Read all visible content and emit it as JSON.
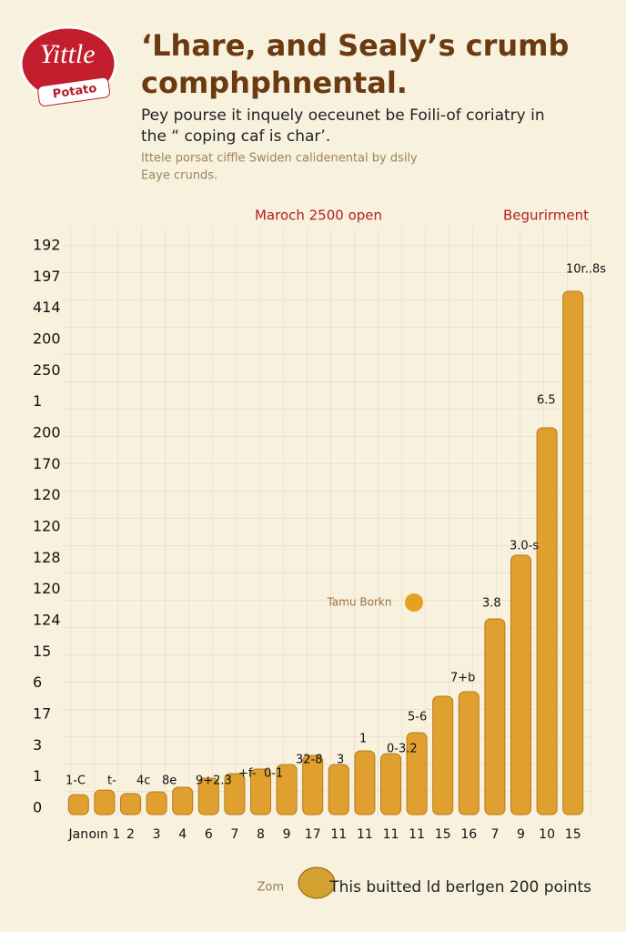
{
  "chart_data": {
    "type": "bar",
    "logo": {
      "top": "Yittle",
      "bottom": "Potato"
    },
    "title": [
      "‘Lhare, and Sealy’s crumb",
      "comphphnental."
    ],
    "subtitle": [
      "Pey pourse it inquely oeceunet be Foili-of coriatry in",
      "the “ coping caf is char’."
    ],
    "caption": [
      "Ittele porsat ciffle Swiden calidenental by dsily",
      "Eaye crunds."
    ],
    "header_left": "Maroch 2500 open",
    "header_right": "Begurirment",
    "y_axis_labels": [
      "192",
      "197",
      "414",
      "200",
      "250",
      "1",
      "200",
      "170",
      "120",
      "120",
      "128",
      "120",
      "124",
      "15",
      "6",
      "17",
      "3",
      "1",
      "0"
    ],
    "categories": [
      "Jan",
      "oın 1",
      "2",
      "3",
      "4",
      "6",
      "7",
      "8",
      "9",
      "17",
      "11",
      "11",
      "11",
      "11",
      "15",
      "16",
      "7",
      "9",
      "10",
      "15"
    ],
    "values": [
      3.5,
      4.3,
      3.7,
      4,
      4.8,
      6.4,
      7.2,
      8,
      8.8,
      10.4,
      8.8,
      11.2,
      10.7,
      14.4,
      20.8,
      21.6,
      34.4,
      45.6,
      68,
      92
    ],
    "ylim": [
      0,
      100
    ],
    "color": "#e0a030",
    "annotations": [
      "1-C",
      "t-",
      "4c",
      "8e",
      "9+2.3",
      "+f-",
      "0-1",
      "32-8",
      "3",
      "1",
      "0-3.2",
      "5-6",
      "7+b",
      "3.8",
      "3.0-s",
      "6.5",
      "10r..8s"
    ],
    "note": "Tamu Borkn",
    "footer_left": "Zom",
    "footer_right": "This buitted ld berlgen 200 points"
  }
}
